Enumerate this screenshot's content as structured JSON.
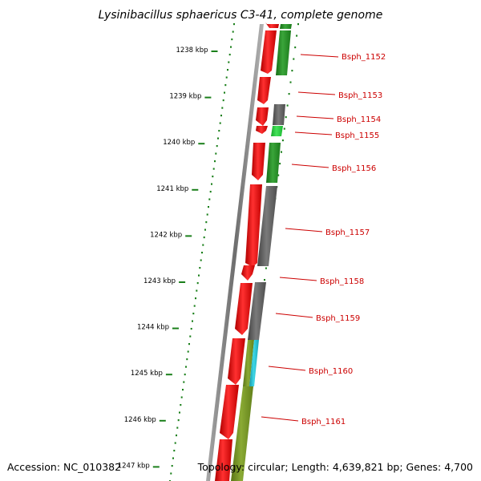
{
  "title": "Lysinibacillus sphaericus C3-41, complete genome",
  "accession": "Accession: NC_010382",
  "topology": "Topology: circular; Length: 4,639,821 bp; Genes: 4,700",
  "scale_labels": [
    "1238 kbp",
    "1239 kbp",
    "1240 kbp",
    "1241 kbp",
    "1242 kbp",
    "1243 kbp",
    "1244 kbp",
    "1245 kbp",
    "1246 kbp",
    "1247 kbp"
  ],
  "genes": [
    {
      "label": "Bsph_1152"
    },
    {
      "label": "Bsph_1153"
    },
    {
      "label": "Bsph_1154"
    },
    {
      "label": "Bsph_1155"
    },
    {
      "label": "Bsph_1156"
    },
    {
      "label": "Bsph_1157"
    },
    {
      "label": "Bsph_1158"
    },
    {
      "label": "Bsph_1159"
    },
    {
      "label": "Bsph_1160"
    },
    {
      "label": "Bsph_1161"
    }
  ],
  "colors": {
    "forward_strand": "#e00000",
    "cog_green": "#1f8a1f",
    "cog_light_green": "#22c43a",
    "cog_gray": "#5c5c5c",
    "cog_cyan": "#1fb8c8",
    "cog_olive": "#6f8f1f",
    "backbone": "#808080",
    "tick": "#1a7f1a",
    "label_line": "#cc0000"
  }
}
